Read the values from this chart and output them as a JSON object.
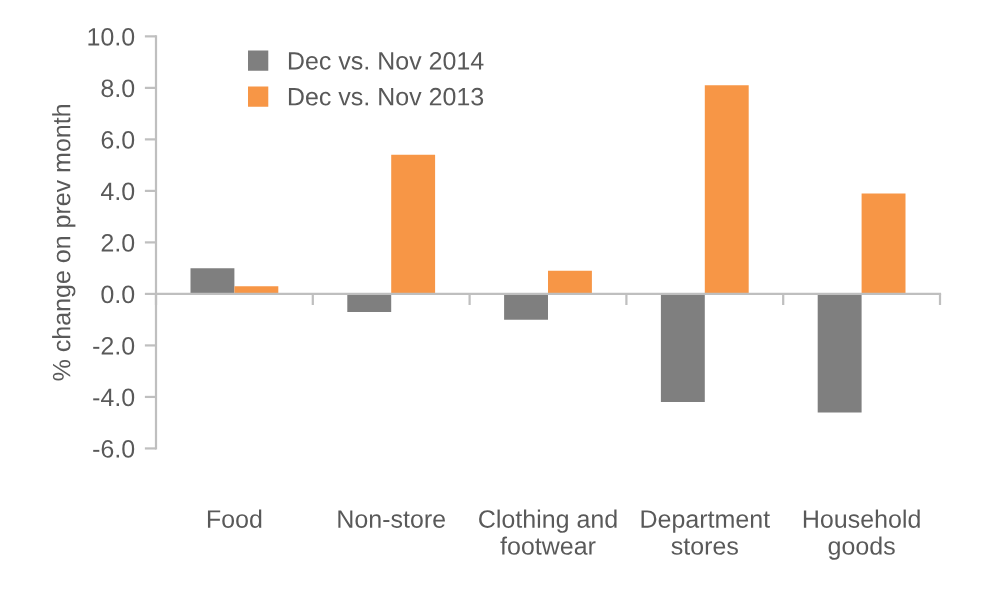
{
  "chart_data": {
    "type": "bar",
    "ylabel": "% change on prev month",
    "categories": [
      "Food",
      "Non-store",
      "Clothing and\nfootwear",
      "Department\nstores",
      "Household\ngoods"
    ],
    "series": [
      {
        "name": "Dec vs. Nov 2014",
        "color": "#7f7f7f",
        "values": [
          1.0,
          -0.7,
          -1.0,
          -4.2,
          -4.6
        ]
      },
      {
        "name": "Dec vs. Nov 2013",
        "color": "#f79646",
        "values": [
          0.3,
          5.4,
          0.9,
          8.1,
          3.9
        ]
      }
    ],
    "ylim": [
      -6,
      10
    ],
    "yticks": [
      {
        "value": -6,
        "label": "-6.0"
      },
      {
        "value": -4,
        "label": "-4.0"
      },
      {
        "value": -2,
        "label": "-2.0"
      },
      {
        "value": 0,
        "label": "0.0"
      },
      {
        "value": 2,
        "label": "2.0"
      },
      {
        "value": 4,
        "label": "4.0"
      },
      {
        "value": 6,
        "label": "6.0"
      },
      {
        "value": 8,
        "label": "8.0"
      },
      {
        "value": 10,
        "label": "10.0"
      }
    ],
    "legend": "top left"
  }
}
